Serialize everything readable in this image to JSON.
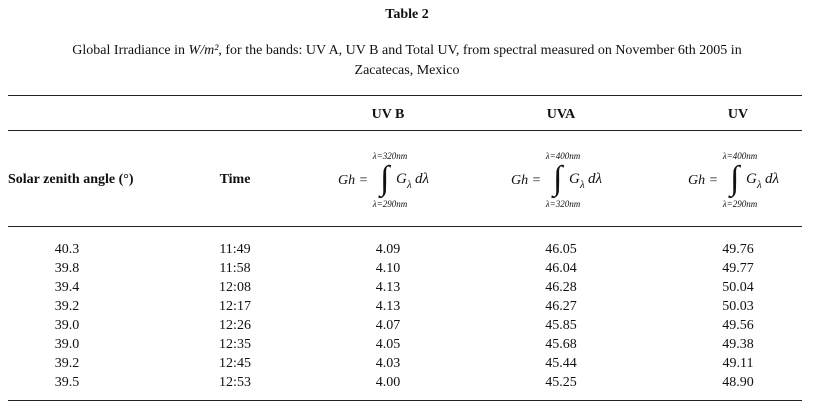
{
  "title": "Table 2",
  "caption": {
    "before": "Global Irradiance in ",
    "unit": "W/m²",
    "after": ", for the bands: UV A, UV B and Total UV, from spectral measured on November 6th 2005 in",
    "line2": "Zacatecas, Mexico"
  },
  "table": {
    "band_headers": [
      "UV B",
      "UVA",
      "UV"
    ],
    "column_headers": [
      "Solar zenith angle (°)",
      "Time"
    ],
    "formulas": [
      {
        "lhs": "Gh =",
        "symbol": "∫",
        "upper": "λ=320nm",
        "lower": "λ=290nm",
        "integrand": "G",
        "sub": "λ",
        "diff": "dλ"
      },
      {
        "lhs": "Gh =",
        "symbol": "∫",
        "upper": "λ=400nm",
        "lower": "λ=320nm",
        "integrand": "G",
        "sub": "λ",
        "diff": "dλ"
      },
      {
        "lhs": "Gh =",
        "symbol": "∫",
        "upper": "λ=400nm",
        "lower": "λ=290nm",
        "integrand": "G",
        "sub": "λ",
        "diff": "dλ"
      }
    ],
    "rows": [
      [
        "40.3",
        "11:49",
        "4.09",
        "46.05",
        "49.76"
      ],
      [
        "39.8",
        "11:58",
        "4.10",
        "46.04",
        "49.77"
      ],
      [
        "39.4",
        "12:08",
        "4.13",
        "46.28",
        "50.04"
      ],
      [
        "39.2",
        "12:17",
        "4.13",
        "46.27",
        "50.03"
      ],
      [
        "39.0",
        "12:26",
        "4.07",
        "45.85",
        "49.56"
      ],
      [
        "39.0",
        "12:35",
        "4.05",
        "45.68",
        "49.38"
      ],
      [
        "39.2",
        "12:45",
        "4.03",
        "45.44",
        "49.11"
      ],
      [
        "39.5",
        "12:53",
        "4.00",
        "45.25",
        "48.90"
      ]
    ]
  }
}
